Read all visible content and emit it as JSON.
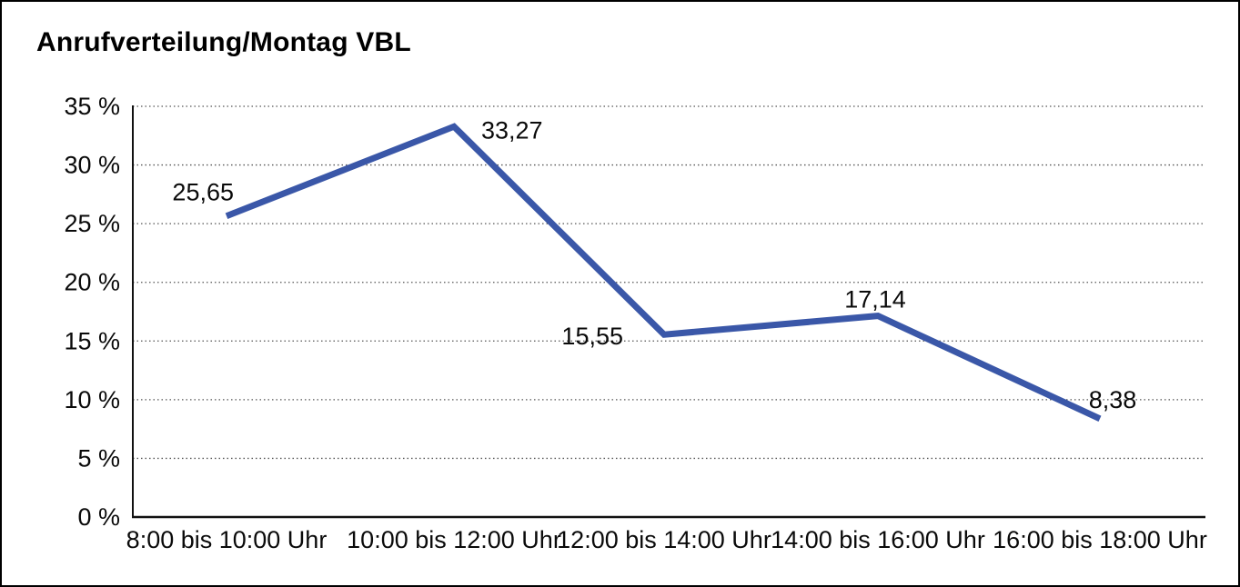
{
  "chart_data": {
    "type": "line",
    "title": "Anrufverteilung/Montag VBL",
    "categories": [
      "8:00 bis 10:00 Uhr",
      "10:00 bis 12:00 Uhr",
      "12:00 bis 14:00 Uhr",
      "14:00 bis 16:00 Uhr",
      "16:00 bis 18:00 Uhr"
    ],
    "series": [
      {
        "name": "Anrufverteilung Montag",
        "values": [
          25.65,
          33.27,
          15.55,
          17.14,
          8.38
        ]
      }
    ],
    "point_labels": [
      "25,65",
      "33,27",
      "15,55",
      "17,14",
      "8,38"
    ],
    "xlabel": "",
    "ylabel": "",
    "ylim": [
      0,
      35
    ],
    "y_tick_step": 5,
    "y_tick_values": [
      0,
      5,
      10,
      15,
      20,
      25,
      30,
      35
    ],
    "y_tick_labels": [
      "0 %",
      "5 %",
      "10 %",
      "15 %",
      "20 %",
      "25 %",
      "30 %",
      "35 %"
    ],
    "grid": "horizontal dotted",
    "legend_position": "none",
    "colors": {
      "line": "#3A57A8",
      "axis": "#111111",
      "gridline": "#555555",
      "text": "#0a0a0a",
      "background": "#ffffff",
      "border": "#000000"
    }
  }
}
